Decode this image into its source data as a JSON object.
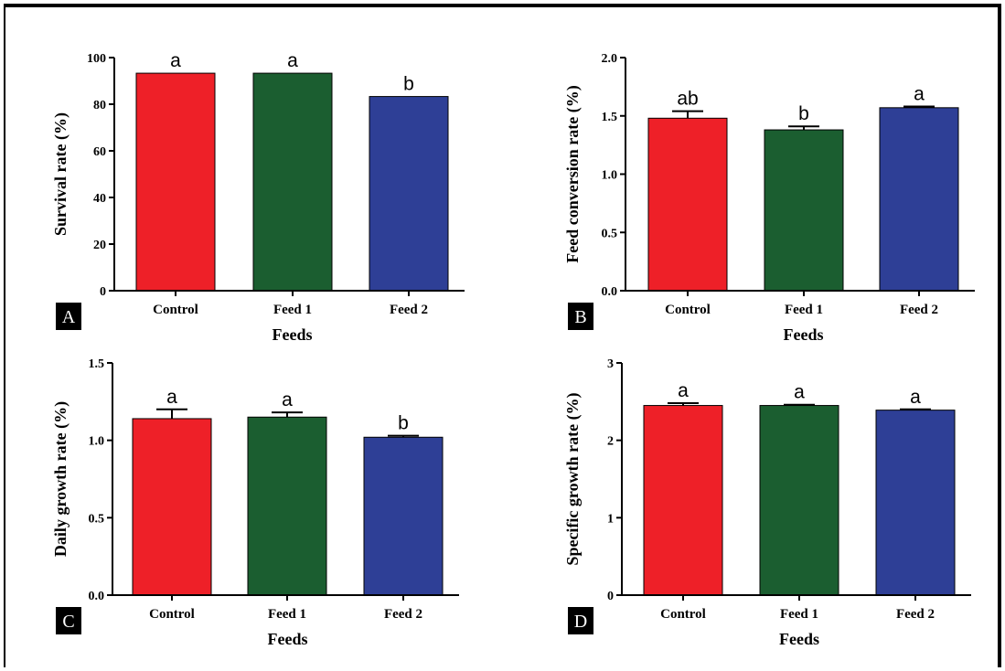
{
  "colors": {
    "control": "#ee2028",
    "feed1": "#1b5e30",
    "feed2": "#2e3f96"
  },
  "chart_data": [
    {
      "panel": "A",
      "type": "bar",
      "categories": [
        "Control",
        "Feed 1",
        "Feed 2"
      ],
      "values": [
        93.3,
        93.3,
        83.3
      ],
      "errors": [
        0,
        0,
        0
      ],
      "significance": [
        "a",
        "a",
        "b"
      ],
      "xlabel": "Feeds",
      "ylabel": "Survival rate (%)",
      "ylim": [
        0,
        100
      ],
      "yticks": [
        0,
        20,
        40,
        60,
        80,
        100
      ],
      "ytick_labels": [
        "0",
        "20",
        "40",
        "60",
        "80",
        "100"
      ]
    },
    {
      "panel": "B",
      "type": "bar",
      "categories": [
        "Control",
        "Feed 1",
        "Feed 2"
      ],
      "values": [
        1.48,
        1.38,
        1.57
      ],
      "errors": [
        0.06,
        0.03,
        0.01
      ],
      "significance": [
        "ab",
        "b",
        "a"
      ],
      "xlabel": "Feeds",
      "ylabel": "Feed conversion rate (%)",
      "ylim": [
        0,
        2.0
      ],
      "yticks": [
        0,
        0.5,
        1.0,
        1.5,
        2.0
      ],
      "ytick_labels": [
        "0.0",
        "0.5",
        "1.0",
        "1.5",
        "2.0"
      ]
    },
    {
      "panel": "C",
      "type": "bar",
      "categories": [
        "Control",
        "Feed 1",
        "Feed 2"
      ],
      "values": [
        1.14,
        1.15,
        1.02
      ],
      "errors": [
        0.06,
        0.03,
        0.01
      ],
      "significance": [
        "a",
        "a",
        "b"
      ],
      "xlabel": "Feeds",
      "ylabel": "Daily growth rate (%)",
      "ylim": [
        0,
        1.5
      ],
      "yticks": [
        0,
        0.5,
        1.0,
        1.5
      ],
      "ytick_labels": [
        "0.0",
        "0.5",
        "1.0",
        "1.5"
      ]
    },
    {
      "panel": "D",
      "type": "bar",
      "categories": [
        "Control",
        "Feed 1",
        "Feed 2"
      ],
      "values": [
        2.45,
        2.45,
        2.39
      ],
      "errors": [
        0.03,
        0.01,
        0.01
      ],
      "significance": [
        "a",
        "a",
        "a"
      ],
      "xlabel": "Feeds",
      "ylabel": "Specific growth rate (%)",
      "ylim": [
        0,
        3
      ],
      "yticks": [
        0,
        1,
        2,
        3
      ],
      "ytick_labels": [
        "0",
        "1",
        "2",
        "3"
      ]
    }
  ]
}
